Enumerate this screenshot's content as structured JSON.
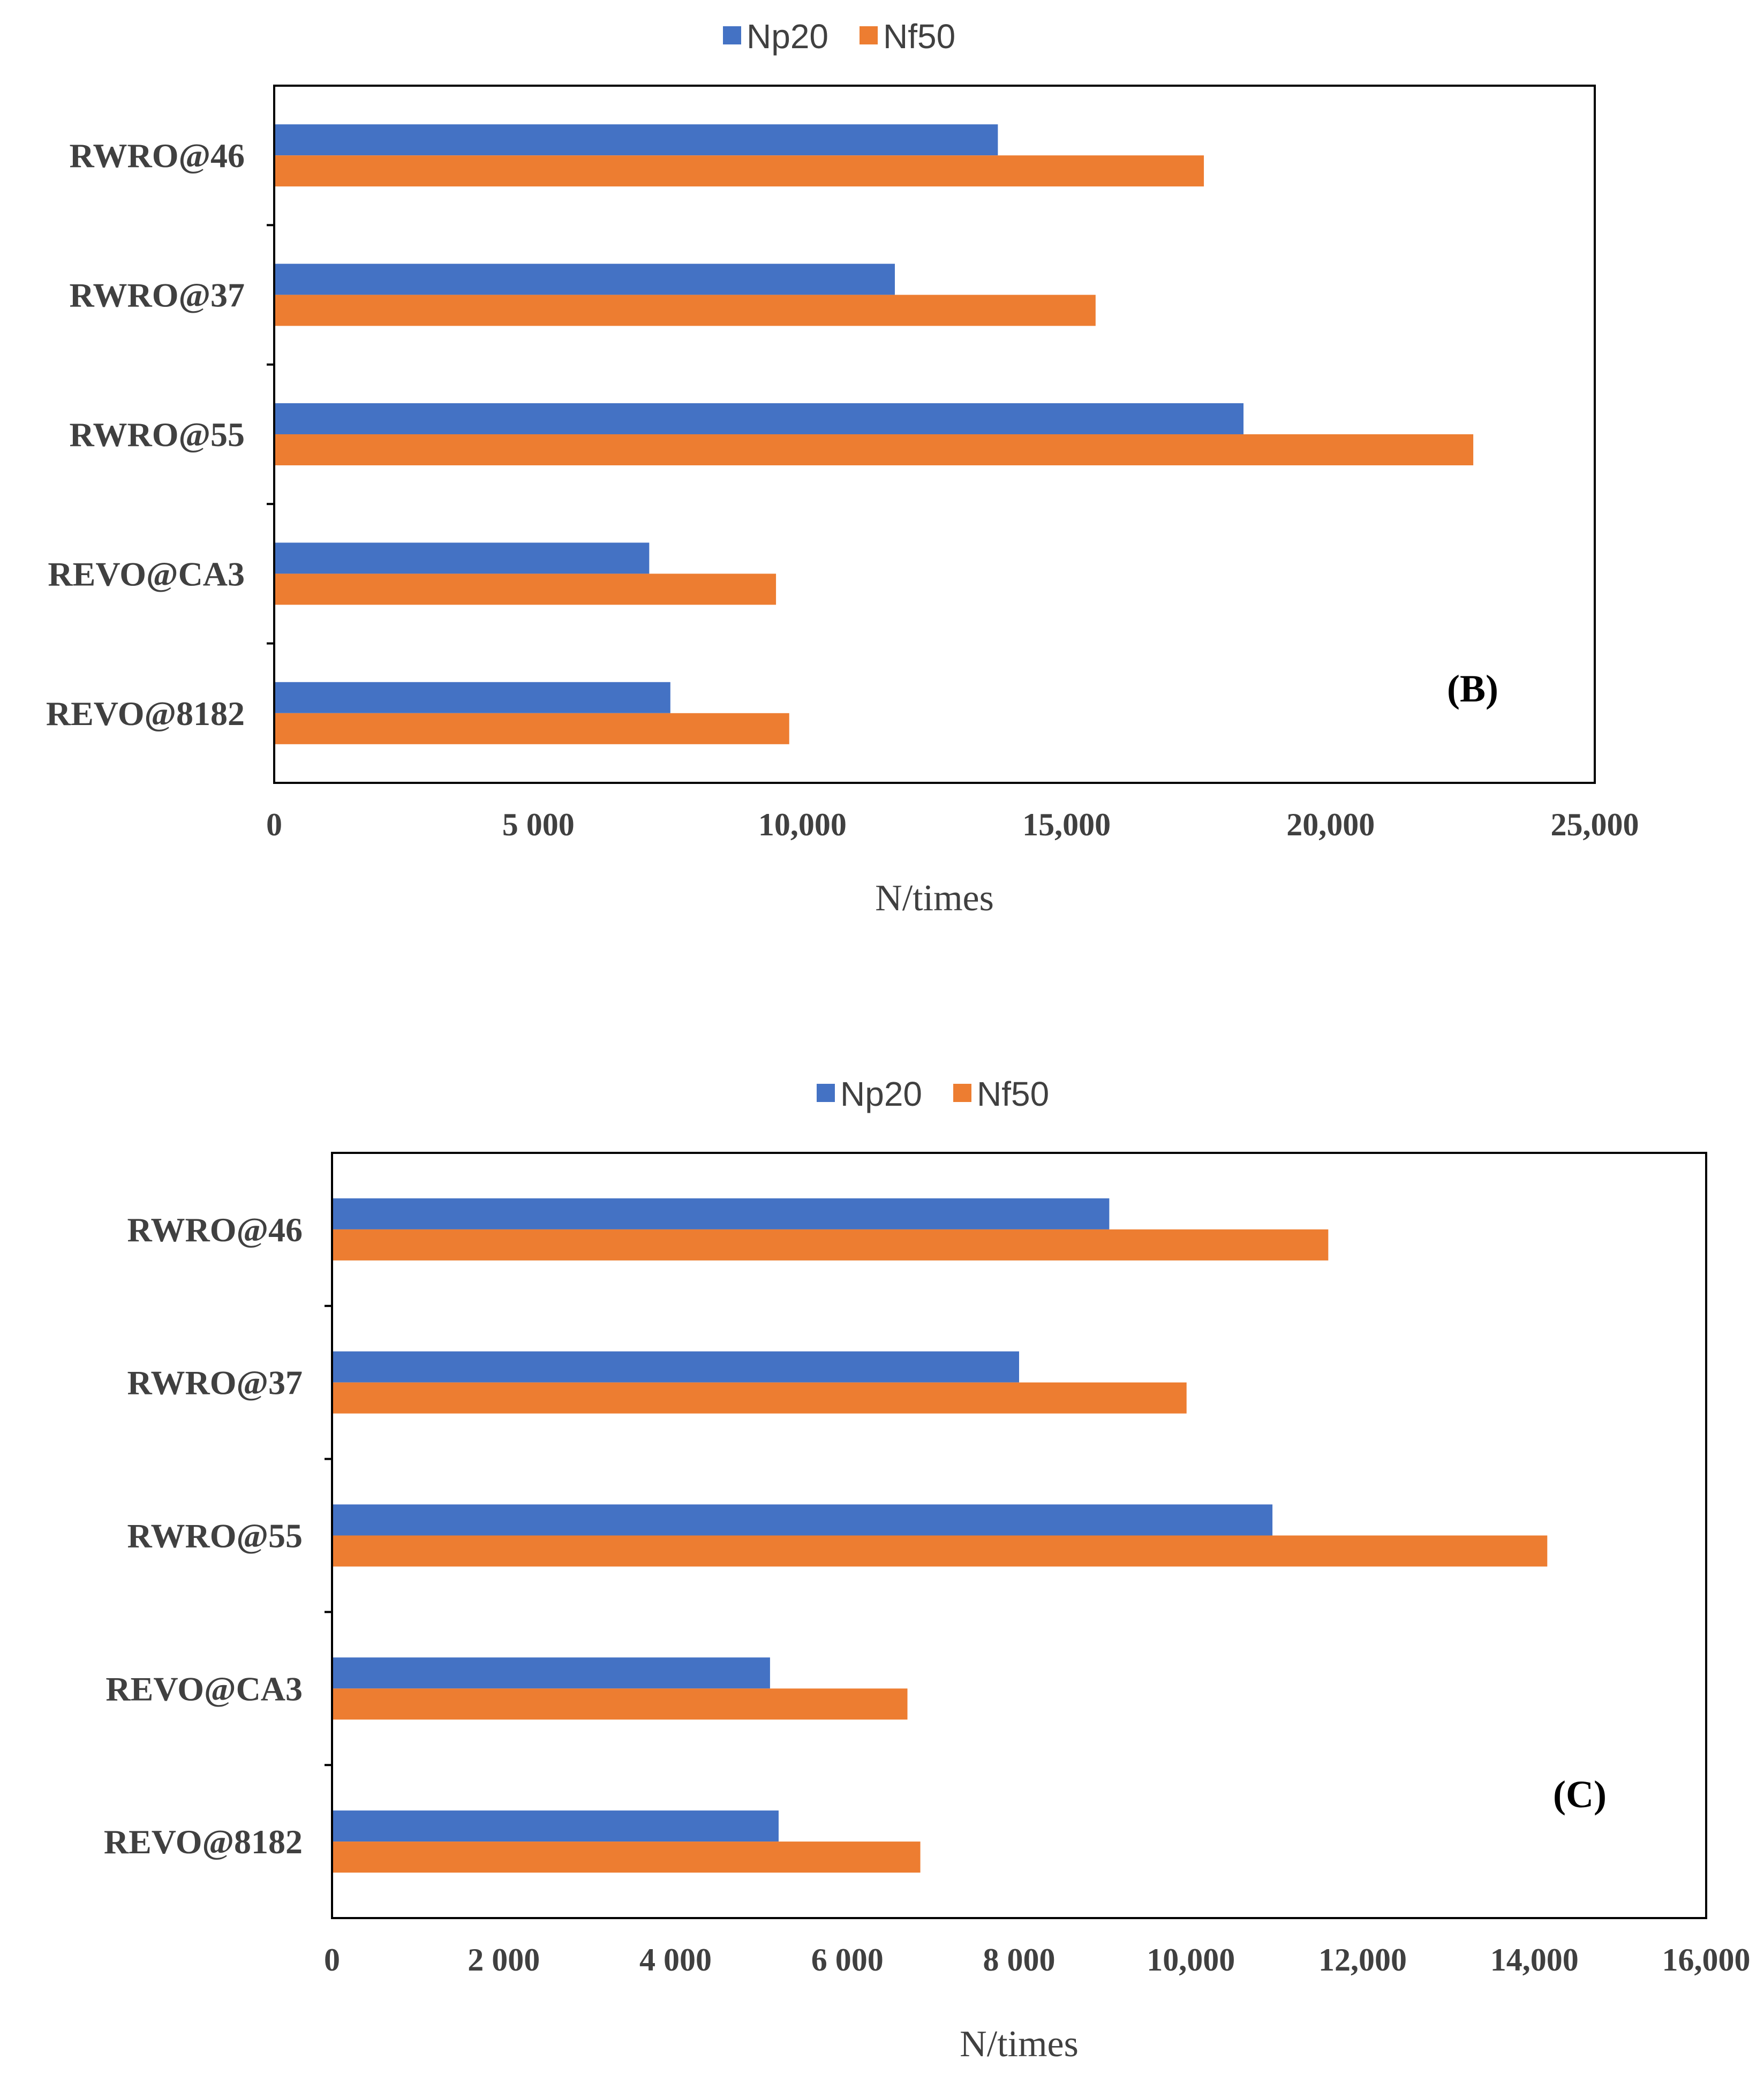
{
  "colors": {
    "np20": "#4472C4",
    "nf50": "#ED7D31",
    "axis": "#000000",
    "text": "#404040"
  },
  "chart_data": [
    {
      "type": "bar",
      "orientation": "horizontal",
      "panel_label": "(B)",
      "categories": [
        "RWRO@46",
        "RWRO@37",
        "RWRO@55",
        "REVO@CA3",
        "REVO@8182"
      ],
      "series": [
        {
          "name": "Np20",
          "values": [
            13700,
            11750,
            18350,
            7100,
            7500
          ]
        },
        {
          "name": "Nf50",
          "values": [
            17600,
            15550,
            22700,
            9500,
            9750
          ]
        }
      ],
      "xlabel": "N/times",
      "ylabel": "",
      "xlim": [
        0,
        25000
      ],
      "xticks": [
        0,
        5000,
        10000,
        15000,
        20000,
        25000
      ],
      "xtick_labels": [
        "0",
        "5 000",
        "10,000",
        "15,000",
        "20,000",
        "25,000"
      ],
      "legend": {
        "position": "top",
        "labels": [
          "Np20",
          "Nf50"
        ]
      },
      "grid": false
    },
    {
      "type": "bar",
      "orientation": "horizontal",
      "panel_label": "(C)",
      "categories": [
        "RWRO@46",
        "RWRO@37",
        "RWRO@55",
        "REVO@CA3",
        "REVO@8182"
      ],
      "series": [
        {
          "name": "Np20",
          "values": [
            9050,
            8000,
            10950,
            5100,
            5200
          ]
        },
        {
          "name": "Nf50",
          "values": [
            11600,
            9950,
            14150,
            6700,
            6850
          ]
        }
      ],
      "xlabel": "N/times",
      "ylabel": "",
      "xlim": [
        0,
        16000
      ],
      "xticks": [
        0,
        2000,
        4000,
        6000,
        8000,
        10000,
        12000,
        14000,
        16000
      ],
      "xtick_labels": [
        "0",
        "2 000",
        "4 000",
        "6 000",
        "8 000",
        "10,000",
        "12,000",
        "14,000",
        "16,000"
      ],
      "legend": {
        "position": "top",
        "labels": [
          "Np20",
          "Nf50"
        ]
      },
      "grid": false
    }
  ]
}
